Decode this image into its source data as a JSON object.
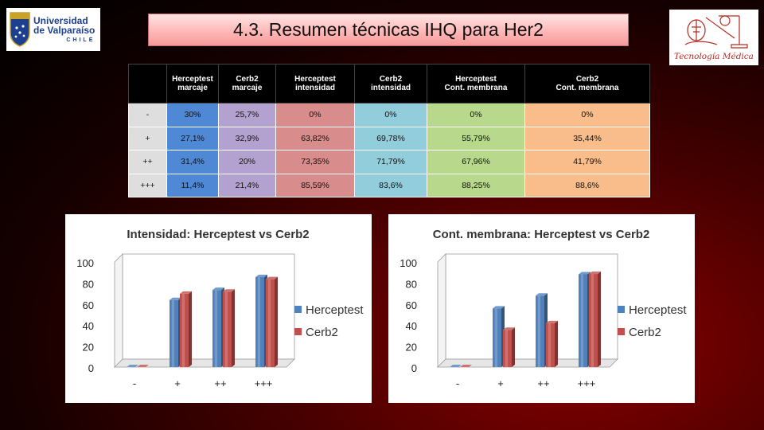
{
  "header": {
    "title": "4.3. Resumen técnicas IHQ para Her2"
  },
  "logos": {
    "left": {
      "line1": "Universidad",
      "line2": "de Valparaíso",
      "line3": "CHILE"
    },
    "right": {
      "caption": "Tecnología Médica"
    }
  },
  "table": {
    "columns": [
      {
        "l1": "",
        "l2": ""
      },
      {
        "l1": "Herceptest",
        "l2": "marcaje"
      },
      {
        "l1": "Cerb2",
        "l2": "marcaje"
      },
      {
        "l1": "Herceptest",
        "l2": "intensidad"
      },
      {
        "l1": "Cerb2",
        "l2": "intensidad"
      },
      {
        "l1": "Herceptest",
        "l2": "Cont. membrana"
      },
      {
        "l1": "Cerb2",
        "l2": "Cont. membrana"
      }
    ],
    "rows": [
      {
        "label": "-",
        "cells": [
          "30%",
          "25,7%",
          "0%",
          "0%",
          "0%",
          "0%"
        ]
      },
      {
        "label": "+",
        "cells": [
          "27,1%",
          "32,9%",
          "63,82%",
          "69,78%",
          "55,79%",
          "35,44%"
        ]
      },
      {
        "label": "++",
        "cells": [
          "31,4%",
          "20%",
          "73,35%",
          "71,79%",
          "67,96%",
          "41,79%"
        ]
      },
      {
        "label": "+++",
        "cells": [
          "11,4%",
          "21,4%",
          "85,59%",
          "83,6%",
          "88,25%",
          "88,6%"
        ]
      }
    ]
  },
  "colors": {
    "herceptest": "#4f81bd",
    "cerb2": "#c0504d"
  },
  "chart_data": [
    {
      "type": "bar",
      "title": "Intensidad: Herceptest vs Cerb2",
      "categories": [
        "-",
        "+",
        "++",
        "+++"
      ],
      "series": [
        {
          "name": "Herceptest",
          "values": [
            0,
            63.82,
            73.35,
            85.59
          ]
        },
        {
          "name": "Cerb2",
          "values": [
            0,
            69.78,
            71.79,
            83.6
          ]
        }
      ],
      "yticks": [
        "0",
        "20",
        "40",
        "60",
        "80",
        "100"
      ],
      "ylim": [
        0,
        100
      ],
      "legend": "right",
      "grid": false
    },
    {
      "type": "bar",
      "title": "Cont. membrana: Herceptest vs Cerb2",
      "categories": [
        "-",
        "+",
        "++",
        "+++"
      ],
      "series": [
        {
          "name": "Herceptest",
          "values": [
            0,
            55.79,
            67.96,
            88.25
          ]
        },
        {
          "name": "Cerb2",
          "values": [
            0,
            35.44,
            41.79,
            88.6
          ]
        }
      ],
      "yticks": [
        "0",
        "20",
        "40",
        "60",
        "80",
        "100"
      ],
      "ylim": [
        0,
        100
      ],
      "legend": "right",
      "grid": false
    }
  ]
}
